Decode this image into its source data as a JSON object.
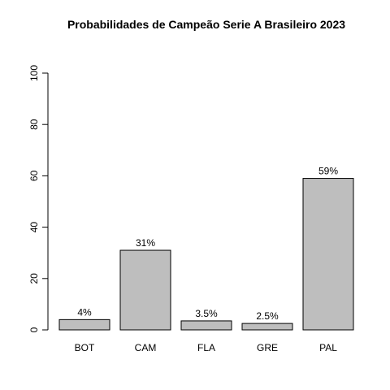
{
  "chart_data": {
    "type": "bar",
    "title": "Probabilidades de Campeão Serie A Brasileiro 2023",
    "xlabel": "",
    "ylabel": "",
    "categories": [
      "BOT",
      "CAM",
      "FLA",
      "GRE",
      "PAL"
    ],
    "values": [
      4,
      31,
      3.5,
      2.5,
      59
    ],
    "value_labels": [
      "4%",
      "31%",
      "3.5%",
      "2.5%",
      "59%"
    ],
    "ylim": [
      0,
      100
    ],
    "yticks": [
      0,
      20,
      40,
      60,
      80,
      100
    ],
    "ytick_labels": [
      "0",
      "20",
      "40",
      "60",
      "80",
      "100"
    ],
    "grid": false,
    "legend": "none",
    "bar_color": "#bebebe"
  }
}
